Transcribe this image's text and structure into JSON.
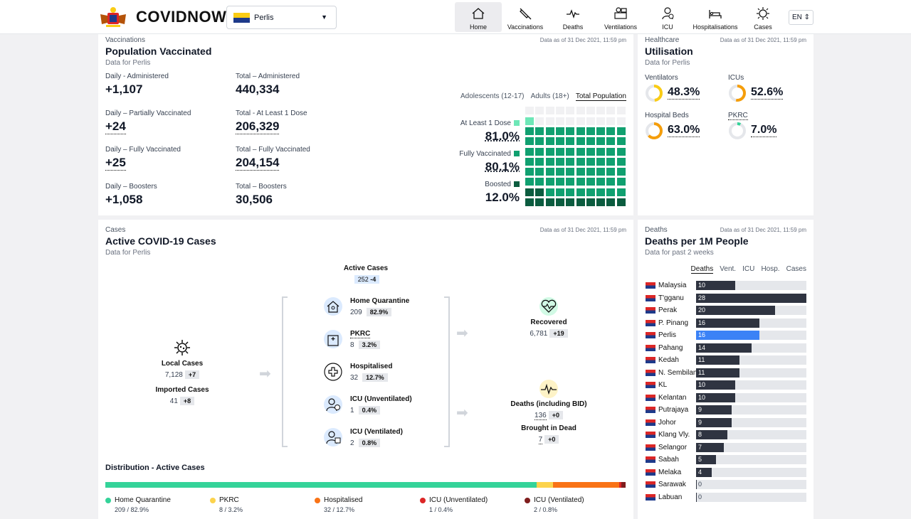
{
  "app": {
    "brand": "COVIDNOW",
    "state_selected": "Perlis",
    "language": "EN",
    "nav": [
      {
        "label": "Home",
        "icon": "home-icon",
        "active": true
      },
      {
        "label": "Vaccinations",
        "icon": "syringe-icon"
      },
      {
        "label": "Deaths",
        "icon": "ecg-icon"
      },
      {
        "label": "Ventilations",
        "icon": "ventilator-icon"
      },
      {
        "label": "ICU",
        "icon": "icu-icon"
      },
      {
        "label": "Hospitalisations",
        "icon": "hospital-bed-icon"
      },
      {
        "label": "Cases",
        "icon": "virus-icon"
      }
    ]
  },
  "vaccination": {
    "kicker": "Vaccinations",
    "title": "Population Vaccinated",
    "sub": "Data for Perlis",
    "asof": "Data as of 31 Dec 2021, 11:59 pm",
    "stats": [
      {
        "label": "Daily - Administered",
        "value": "+1,107"
      },
      {
        "label": "Total – Administered",
        "value": "440,334"
      },
      {
        "label": "Daily – Partially Vaccinated",
        "value": "+24"
      },
      {
        "label": "Total - At Least 1 Dose",
        "value": "206,329"
      },
      {
        "label": "Daily – Fully Vaccinated",
        "value": "+25"
      },
      {
        "label": "Total – Fully Vaccinated",
        "value": "204,154"
      },
      {
        "label": "Daily – Boosters",
        "value": "+1,058"
      },
      {
        "label": "Total – Boosters",
        "value": "30,506"
      }
    ],
    "tabs": [
      "Adolescents (12-17)",
      "Adults (18+)",
      "Total Population"
    ],
    "active_tab": "Total Population",
    "rates": [
      {
        "label": "At Least 1 Dose",
        "value": "81.0%",
        "fraction": 0.81,
        "color": "#6ee7b7"
      },
      {
        "label": "Fully Vaccinated",
        "value": "80.1%",
        "fraction": 0.801,
        "color": "#10a070"
      },
      {
        "label": "Boosted",
        "value": "12.0%",
        "fraction": 0.12,
        "color": "#0b5c3f"
      }
    ]
  },
  "healthcare": {
    "kicker": "Healthcare",
    "title": "Utilisation",
    "sub": "Data for Perlis",
    "asof": "Data as of 31 Dec 2021, 11:59 pm",
    "items": [
      {
        "label": "Ventilators",
        "value": "48.3%",
        "fraction": 0.483,
        "color": "#facc15"
      },
      {
        "label": "ICUs",
        "value": "52.6%",
        "fraction": 0.526,
        "color": "#f59e0b"
      },
      {
        "label": "Hospital Beds",
        "value": "63.0%",
        "fraction": 0.63,
        "color": "#f59e0b"
      },
      {
        "label": "PKRC",
        "value": "7.0%",
        "fraction": 0.07,
        "color": "#34d399"
      }
    ]
  },
  "cases": {
    "kicker": "Cases",
    "title": "Active COVID-19 Cases",
    "sub": "Data for Perlis",
    "asof": "Data as of 31 Dec 2021, 11:59 pm",
    "active_label": "Active Cases",
    "active_value": "252",
    "active_delta": "-4",
    "local_label": "Local Cases",
    "local_value": "7,128",
    "local_delta": "+7",
    "imported_label": "Imported Cases",
    "imported_value": "41",
    "imported_delta": "+8",
    "breakdown": [
      {
        "label": "Home Quarantine",
        "value": "209",
        "pct": "82.9%",
        "icon": "home-quarantine-icon"
      },
      {
        "label": "PKRC",
        "value": "8",
        "pct": "3.2%",
        "icon": "pkrc-building-icon"
      },
      {
        "label": "Hospitalised",
        "value": "32",
        "pct": "12.7%",
        "icon": "hospital-cross-icon"
      },
      {
        "label": "ICU (Unventilated)",
        "value": "1",
        "pct": "0.4%",
        "icon": "icu-unventilated-icon"
      },
      {
        "label": "ICU (Ventilated)",
        "value": "2",
        "pct": "0.8%",
        "icon": "icu-ventilated-icon"
      }
    ],
    "recovered_label": "Recovered",
    "recovered_value": "6,781",
    "recovered_delta": "+19",
    "deaths_label": "Deaths (including BID)",
    "deaths_value": "136",
    "deaths_delta": "+0",
    "bid_label": "Brought in Dead",
    "bid_value": "7",
    "bid_delta": "+0",
    "distribution_title": "Distribution - Active Cases",
    "distribution": [
      {
        "label": "Home Quarantine",
        "sub": "209 / 82.9%",
        "fraction": 0.829,
        "color": "#34d399"
      },
      {
        "label": "PKRC",
        "sub": "8 / 3.2%",
        "fraction": 0.032,
        "color": "#fcd34d"
      },
      {
        "label": "Hospitalised",
        "sub": "32 / 12.7%",
        "fraction": 0.127,
        "color": "#f97316"
      },
      {
        "label": "ICU (Unventilated)",
        "sub": "1 / 0.4%",
        "fraction": 0.004,
        "color": "#dc2626"
      },
      {
        "label": "ICU (Ventilated)",
        "sub": "2 / 0.8%",
        "fraction": 0.008,
        "color": "#7f1d1d"
      }
    ]
  },
  "deaths": {
    "kicker": "Deaths",
    "title": "Deaths per 1M People",
    "sub": "Data for past 2 weeks",
    "asof": "Data as of 31 Dec 2021, 11:59 pm",
    "tabs": [
      "Deaths",
      "Vent.",
      "ICU",
      "Hosp.",
      "Cases"
    ],
    "active_tab": "Deaths",
    "highlight_color": "#3b82f6",
    "bar_color": "#2f3441",
    "max": 28,
    "rows": [
      {
        "state": "Malaysia",
        "value": 10
      },
      {
        "state": "T'gganu",
        "value": 28
      },
      {
        "state": "Perak",
        "value": 20
      },
      {
        "state": "P. Pinang",
        "value": 16
      },
      {
        "state": "Perlis",
        "value": 16,
        "highlight": true
      },
      {
        "state": "Pahang",
        "value": 14
      },
      {
        "state": "Kedah",
        "value": 11
      },
      {
        "state": "N. Sembilan",
        "value": 11
      },
      {
        "state": "KL",
        "value": 10
      },
      {
        "state": "Kelantan",
        "value": 10
      },
      {
        "state": "Putrajaya",
        "value": 9
      },
      {
        "state": "Johor",
        "value": 9
      },
      {
        "state": "Klang Vly.",
        "value": 8
      },
      {
        "state": "Selangor",
        "value": 7
      },
      {
        "state": "Sabah",
        "value": 5
      },
      {
        "state": "Melaka",
        "value": 4
      },
      {
        "state": "Sarawak",
        "value": 0
      },
      {
        "state": "Labuan",
        "value": 0
      }
    ]
  }
}
